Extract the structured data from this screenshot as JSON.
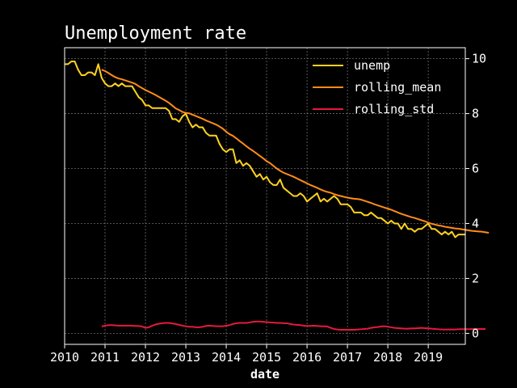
{
  "chart_data": {
    "type": "line",
    "title": "Unemployment rate",
    "xlabel": "date",
    "ylabel": "",
    "xlim": [
      2010.0,
      2019.917
    ],
    "ylim": [
      -0.4,
      10.4
    ],
    "x_ticks": [
      2010,
      2011,
      2012,
      2013,
      2014,
      2015,
      2016,
      2017,
      2018,
      2019
    ],
    "y_ticks": [
      0,
      2,
      4,
      6,
      8,
      10
    ],
    "y_axis_side": "right",
    "grid": true,
    "legend_placement": "top-right",
    "x_start_year": 2010,
    "x_step_months": 1,
    "series": [
      {
        "name": "unemp",
        "color": "#ffd21e",
        "values": [
          9.8,
          9.8,
          9.9,
          9.9,
          9.6,
          9.4,
          9.4,
          9.5,
          9.5,
          9.4,
          9.8,
          9.3,
          9.1,
          9.0,
          9.0,
          9.1,
          9.0,
          9.1,
          9.0,
          9.0,
          9.0,
          8.8,
          8.6,
          8.5,
          8.3,
          8.3,
          8.2,
          8.2,
          8.2,
          8.2,
          8.2,
          8.1,
          7.8,
          7.8,
          7.7,
          7.9,
          8.0,
          7.7,
          7.5,
          7.6,
          7.5,
          7.5,
          7.3,
          7.2,
          7.2,
          7.2,
          6.9,
          6.7,
          6.6,
          6.7,
          6.7,
          6.2,
          6.3,
          6.1,
          6.2,
          6.1,
          5.9,
          5.7,
          5.8,
          5.6,
          5.7,
          5.5,
          5.4,
          5.4,
          5.6,
          5.3,
          5.2,
          5.1,
          5.0,
          5.0,
          5.1,
          5.0,
          4.8,
          4.9,
          5.0,
          5.1,
          4.8,
          4.9,
          4.8,
          4.9,
          5.0,
          4.9,
          4.7,
          4.7,
          4.7,
          4.6,
          4.4,
          4.4,
          4.4,
          4.3,
          4.3,
          4.4,
          4.3,
          4.2,
          4.2,
          4.1,
          4.0,
          4.1,
          4.0,
          4.0,
          3.8,
          4.0,
          3.8,
          3.8,
          3.7,
          3.8,
          3.8,
          3.9,
          4.0,
          3.8,
          3.8,
          3.7,
          3.6,
          3.7,
          3.6,
          3.7,
          3.5,
          3.6,
          3.6,
          3.6
        ]
      },
      {
        "name": "rolling_mean",
        "color": "#ff8c1a",
        "start_index": 11,
        "values": [
          9.6,
          9.55,
          9.48,
          9.4,
          9.33,
          9.28,
          9.25,
          9.21,
          9.17,
          9.13,
          9.08,
          9.0,
          8.93,
          8.86,
          8.8,
          8.74,
          8.68,
          8.61,
          8.54,
          8.47,
          8.39,
          8.29,
          8.19,
          8.13,
          8.06,
          8.03,
          8.01,
          7.96,
          7.91,
          7.86,
          7.81,
          7.75,
          7.7,
          7.65,
          7.6,
          7.53,
          7.45,
          7.34,
          7.25,
          7.19,
          7.1,
          7.0,
          6.91,
          6.81,
          6.72,
          6.64,
          6.55,
          6.46,
          6.37,
          6.27,
          6.2,
          6.1,
          6.0,
          5.92,
          5.85,
          5.8,
          5.75,
          5.7,
          5.64,
          5.58,
          5.52,
          5.46,
          5.4,
          5.35,
          5.3,
          5.24,
          5.19,
          5.15,
          5.12,
          5.07,
          5.03,
          5.0,
          4.97,
          4.94,
          4.92,
          4.9,
          4.89,
          4.87,
          4.83,
          4.79,
          4.75,
          4.7,
          4.66,
          4.62,
          4.58,
          4.54,
          4.5,
          4.45,
          4.4,
          4.35,
          4.31,
          4.27,
          4.23,
          4.2,
          4.16,
          4.12,
          4.08,
          4.03,
          3.99,
          3.96,
          3.93,
          3.91,
          3.88,
          3.86,
          3.84,
          3.82,
          3.81,
          3.79,
          3.77,
          3.75,
          3.73,
          3.72,
          3.71,
          3.7,
          3.68,
          3.66
        ]
      },
      {
        "name": "rolling_std",
        "color": "#e6193c",
        "start_index": 11,
        "values": [
          0.25,
          0.28,
          0.3,
          0.3,
          0.29,
          0.28,
          0.28,
          0.28,
          0.28,
          0.28,
          0.27,
          0.27,
          0.25,
          0.2,
          0.22,
          0.28,
          0.32,
          0.35,
          0.37,
          0.38,
          0.38,
          0.36,
          0.34,
          0.31,
          0.28,
          0.26,
          0.24,
          0.24,
          0.22,
          0.22,
          0.24,
          0.27,
          0.28,
          0.27,
          0.26,
          0.26,
          0.26,
          0.28,
          0.3,
          0.34,
          0.37,
          0.38,
          0.38,
          0.38,
          0.4,
          0.42,
          0.43,
          0.43,
          0.42,
          0.41,
          0.4,
          0.39,
          0.38,
          0.38,
          0.37,
          0.37,
          0.34,
          0.32,
          0.31,
          0.3,
          0.28,
          0.27,
          0.27,
          0.28,
          0.27,
          0.26,
          0.26,
          0.25,
          0.2,
          0.16,
          0.14,
          0.13,
          0.13,
          0.13,
          0.13,
          0.13,
          0.14,
          0.15,
          0.16,
          0.17,
          0.2,
          0.22,
          0.23,
          0.25,
          0.26,
          0.24,
          0.22,
          0.2,
          0.19,
          0.18,
          0.17,
          0.17,
          0.18,
          0.18,
          0.19,
          0.2,
          0.19,
          0.18,
          0.17,
          0.16,
          0.15,
          0.14,
          0.14,
          0.14,
          0.14,
          0.14,
          0.15,
          0.15,
          0.15,
          0.15,
          0.16,
          0.16,
          0.16,
          0.16,
          0.16
        ]
      }
    ]
  }
}
